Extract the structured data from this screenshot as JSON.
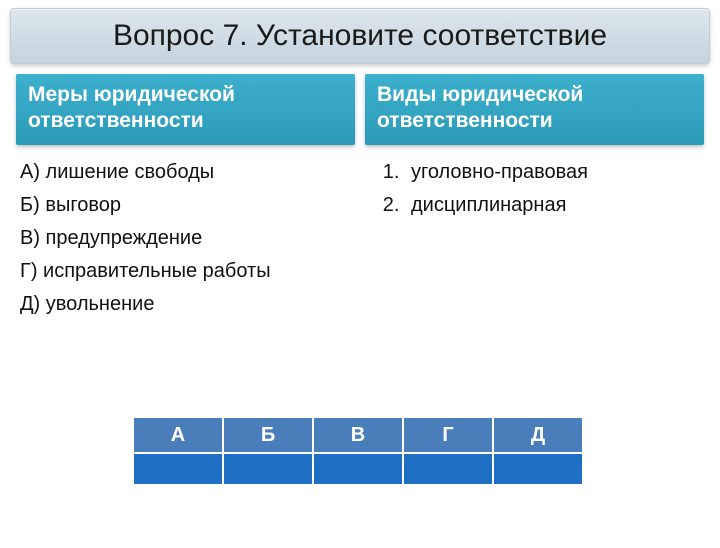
{
  "title": "Вопрос 7. Установите соответствие",
  "left": {
    "header": "Меры юридической ответственности",
    "items": [
      "А) лишение свободы",
      "Б) выговор",
      "В) предупреждение",
      "Г) исправительные работы",
      "Д) увольнение"
    ]
  },
  "right": {
    "header": "Виды юридической ответственности",
    "items": [
      "уголовно-правовая",
      "дисциплинарная"
    ]
  },
  "table": {
    "headers": [
      "А",
      "Б",
      "В",
      "Г",
      "Д"
    ],
    "header_bg": "#4a7ebb",
    "row_bg": "#1f6fc4",
    "border_color": "#ffffff"
  },
  "colors": {
    "title_bg_top": "#dde6ec",
    "title_bg_bottom": "#c6d3dd",
    "sub_bg_top": "#3db0cd",
    "sub_bg_bottom": "#2b9ab7",
    "text": "#111111",
    "white": "#ffffff"
  }
}
